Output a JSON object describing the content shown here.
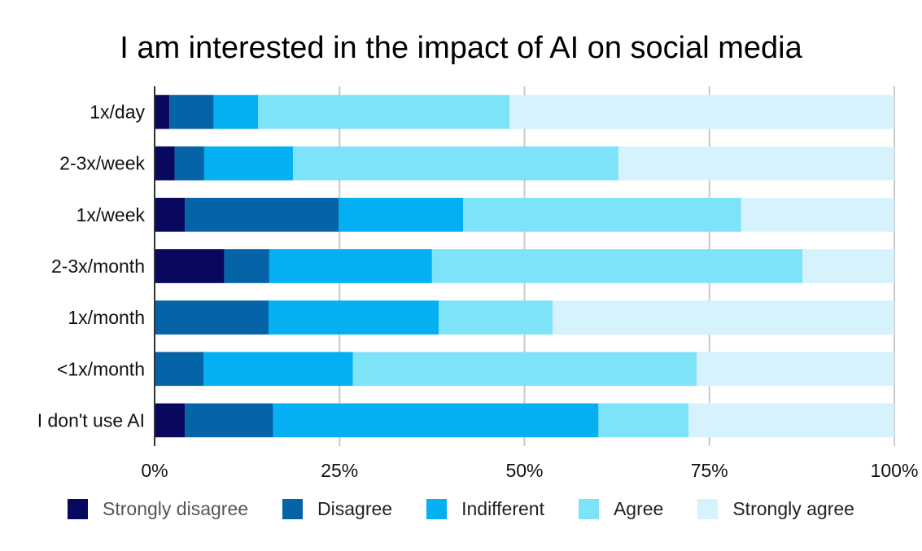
{
  "chart_data": {
    "type": "bar",
    "orientation": "horizontal",
    "stacked": "percent",
    "title": "I am interested in the impact of AI on social media",
    "xlabel": "",
    "ylabel": "",
    "xlim": [
      0,
      100
    ],
    "x_ticks": [
      "0%",
      "25%",
      "50%",
      "75%",
      "100%"
    ],
    "grid": true,
    "legend_position": "bottom",
    "categories": [
      "1x/day",
      "2-3x/week",
      "1x/week",
      "2-3x/month",
      "1x/month",
      "<1x/month",
      "I don't use AI"
    ],
    "series": [
      {
        "name": "Strongly disagree",
        "color": "#08085e",
        "values": [
          2,
          2.7,
          4.1,
          9.4,
          0,
          0,
          4.1
        ]
      },
      {
        "name": "Disagree",
        "color": "#0563a8",
        "values": [
          6,
          4,
          20.8,
          6.1,
          15.4,
          6.6,
          11.9
        ]
      },
      {
        "name": "Indifferent",
        "color": "#04b0f2",
        "values": [
          6,
          12,
          16.8,
          22,
          23,
          20.2,
          44
        ]
      },
      {
        "name": "Agree",
        "color": "#7de3f8",
        "values": [
          34,
          44,
          37.6,
          50.1,
          15.4,
          46.5,
          12.2
        ]
      },
      {
        "name": "Strongly agree",
        "color": "#d6f2fc",
        "values": [
          52,
          37.3,
          20.7,
          12.4,
          46.2,
          26.7,
          27.8
        ]
      }
    ]
  }
}
